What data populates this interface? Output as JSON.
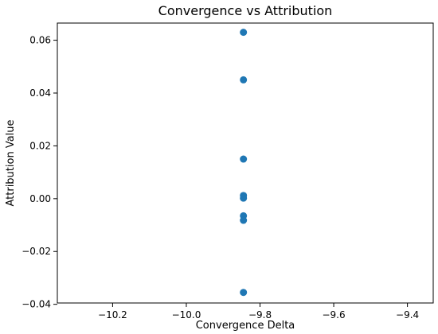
{
  "chart_data": {
    "type": "scatter",
    "title": "Convergence vs Attribution",
    "xlabel": "Convergence Delta",
    "ylabel": "Attribution Value",
    "xlim": [
      -10.35,
      -9.33
    ],
    "ylim": [
      -0.0395,
      0.0665
    ],
    "x_ticks": [
      -10.2,
      -10.0,
      -9.8,
      -9.6,
      -9.4
    ],
    "y_ticks": [
      -0.04,
      -0.02,
      0.0,
      0.02,
      0.04,
      0.06
    ],
    "x_tick_labels": [
      "−10.2",
      "−10.0",
      "−9.8",
      "−9.6",
      "−9.4"
    ],
    "y_tick_labels": [
      "−0.04",
      "−0.02",
      "0.00",
      "0.02",
      "0.04",
      "0.06"
    ],
    "points": [
      {
        "x": -9.845,
        "y": 0.063
      },
      {
        "x": -9.845,
        "y": 0.045
      },
      {
        "x": -9.845,
        "y": 0.015
      },
      {
        "x": -9.845,
        "y": 0.0012
      },
      {
        "x": -9.845,
        "y": 0.0002
      },
      {
        "x": -9.845,
        "y": -0.0065
      },
      {
        "x": -9.845,
        "y": -0.0082
      },
      {
        "x": -9.845,
        "y": -0.0355
      }
    ],
    "grid": false,
    "marker_color": "#1f77b4"
  }
}
